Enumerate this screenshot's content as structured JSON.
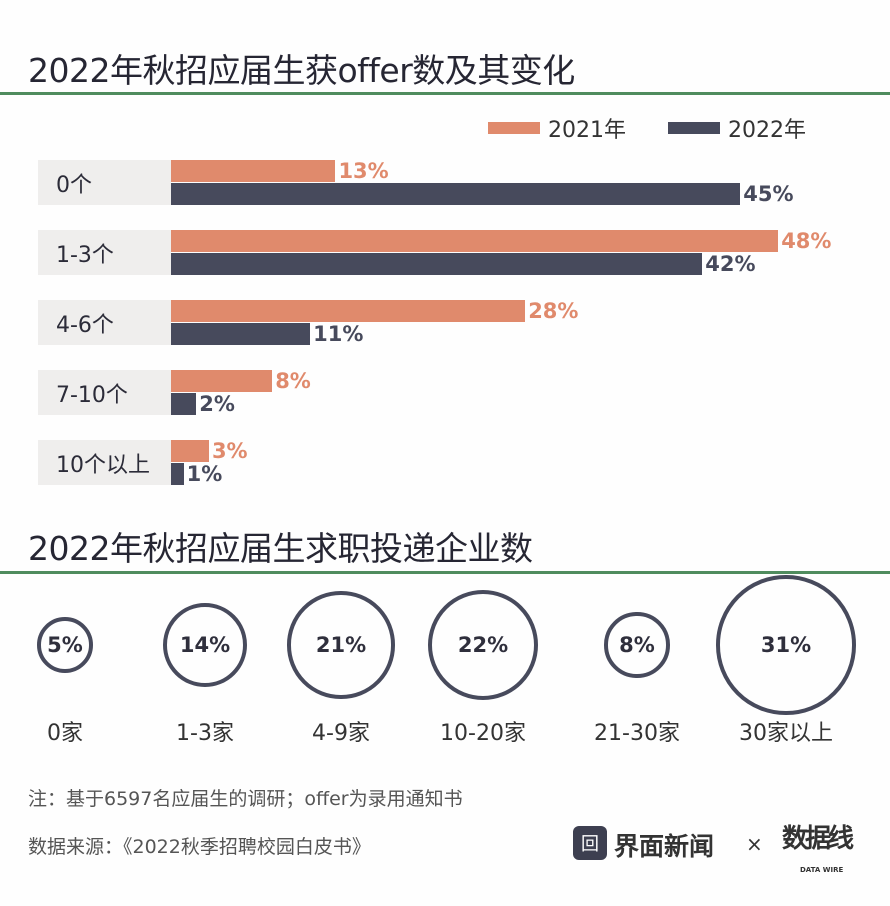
{
  "colors": {
    "y2021": "#e08a6c",
    "y2022": "#474a5c",
    "rule": "#4f8c5e"
  },
  "chart_data": [
    {
      "type": "bar",
      "orientation": "horizontal",
      "title": "2022年秋招应届生获offer数及其变化",
      "categories": [
        "0个",
        "1-3个",
        "4-6个",
        "7-10个",
        "10个以上"
      ],
      "series": [
        {
          "name": "2021年",
          "values": [
            13,
            48,
            28,
            8,
            3
          ]
        },
        {
          "name": "2022年",
          "values": [
            45,
            42,
            11,
            2,
            1
          ]
        }
      ],
      "unit": "%",
      "legend": "top-right"
    },
    {
      "type": "bubble",
      "title": "2022年秋招应届生求职投递企业数",
      "categories": [
        "0家",
        "1-3家",
        "4-9家",
        "10-20家",
        "21-30家",
        "30家以上"
      ],
      "values": [
        5,
        14,
        21,
        22,
        8,
        31
      ],
      "unit": "%"
    }
  ],
  "footer": {
    "note": "注：基于6597名应届生的调研；offer为录用通知书",
    "source": "数据来源：《2022秋季招聘校园白皮书》",
    "brand": "界面新闻",
    "times": "×",
    "logo": "数据线",
    "logo_sub": "DATA WIRE"
  }
}
